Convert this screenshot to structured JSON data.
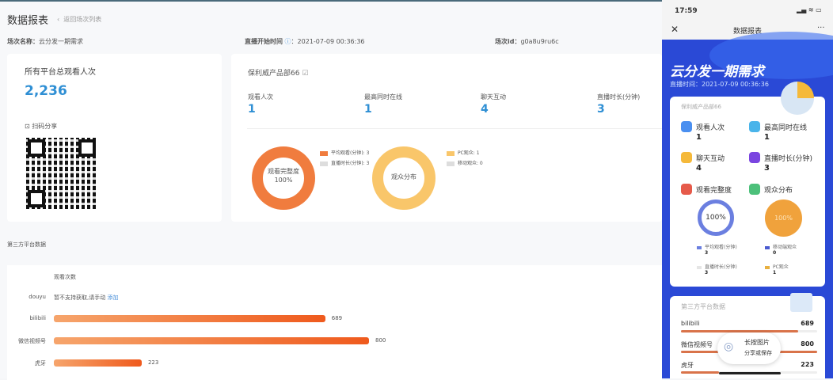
{
  "header": {
    "title": "数据报表",
    "back_label": "返回场次列表"
  },
  "meta": {
    "session_name_label": "场次名称：",
    "session_name": "云分发一期需求",
    "start_label": "直播开始时间",
    "start_sep": "：",
    "start_time": "2021-07-09 00:36:36",
    "id_label": "场次id：",
    "id": "g0a8u9ru6c"
  },
  "total": {
    "label": "所有平台总观看人次",
    "value": "2,236",
    "qr_label": "扫码分享"
  },
  "room": {
    "name": "保利威产品部66",
    "stats": [
      {
        "label": "观看人次",
        "value": "1"
      },
      {
        "label": "最高同时在线",
        "value": "1"
      },
      {
        "label": "聊天互动",
        "value": "4"
      },
      {
        "label": "直播时长(分钟)",
        "value": "3"
      }
    ],
    "donut1": {
      "center": "观看完整度",
      "pct": "100%",
      "legend": [
        "平均观看(分钟): 3",
        "直播时长(分钟): 3"
      ]
    },
    "donut2": {
      "center": "观众分布",
      "legend": [
        "PC观众: 1",
        "移动观众: 0"
      ]
    }
  },
  "third": {
    "title": "第三方平台数据",
    "col": "观看次数",
    "douyu": {
      "name": "douyu",
      "msg": "暂不支持获取,请手动",
      "link": "添加"
    },
    "rows": [
      {
        "name": "bilibili",
        "value": 689
      },
      {
        "name": "微信视频号",
        "value": 800
      },
      {
        "name": "虎牙",
        "value": 223
      }
    ],
    "max": 800
  },
  "phone": {
    "time": "17:59",
    "title": "数据报表",
    "more": "···",
    "banner_title": "云分发一期需求",
    "banner_time": "直播时间：2021-07-09 00:36:36",
    "room": "保利威产品部66",
    "stats": [
      {
        "label": "观看人次",
        "value": "1"
      },
      {
        "label": "最高同时在线",
        "value": "1"
      },
      {
        "label": "聊天互动",
        "value": "4"
      },
      {
        "label": "直播时长(分钟)",
        "value": "3"
      }
    ],
    "complete_label": "观看完整度",
    "dist_label": "观众分布",
    "complete_pct": "100%",
    "dist_pct": "100%",
    "legend": [
      {
        "label": "平均观看(分钟)",
        "value": "3"
      },
      {
        "label": "移动端观众",
        "value": "0"
      },
      {
        "label": "直播时长(分钟)",
        "value": "3"
      },
      {
        "label": "PC观众",
        "value": "1"
      }
    ],
    "third_title": "第三方平台数据",
    "rows": [
      {
        "name": "bilibili",
        "value": "689"
      },
      {
        "name": "微信视频号",
        "value": "800"
      },
      {
        "name": "虎牙",
        "value": "223"
      }
    ],
    "toast_title": "长按图片",
    "toast_sub": "分享或保存"
  },
  "colors": {
    "accent": "#2f8fd4",
    "orange": "#f07c3e",
    "yellow": "#f9c66a",
    "phone_bg": "#2a49d6"
  }
}
